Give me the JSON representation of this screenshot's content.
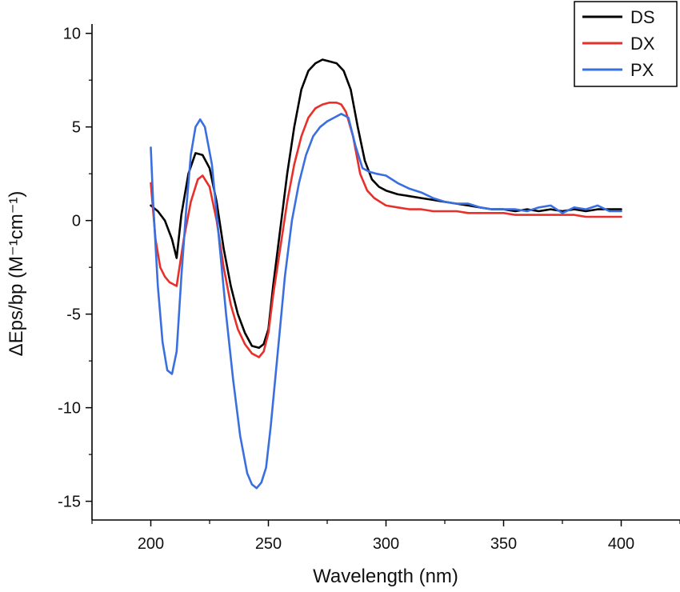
{
  "chart_data": {
    "type": "line",
    "title": "",
    "xlabel": "Wavelength (nm)",
    "ylabel": "ΔEps/bp (M⁻¹cm⁻¹)",
    "xlim": [
      175,
      425
    ],
    "ylim": [
      -16,
      10.5
    ],
    "x_ticks": [
      200,
      250,
      300,
      350,
      400
    ],
    "y_ticks": [
      10,
      5,
      0,
      -5,
      -10,
      -15
    ],
    "x_tick_labels": [
      "200",
      "250",
      "300",
      "350",
      "400"
    ],
    "y_tick_labels": [
      "10",
      "5",
      "0",
      "-5",
      "-10",
      "-15"
    ],
    "legend_position": "top-right",
    "grid": false,
    "series": [
      {
        "name": "DS",
        "color": "#000000",
        "x": [
          200,
          203,
          206,
          209,
          211,
          213,
          216,
          219,
          222,
          225,
          228,
          231,
          234,
          237,
          240,
          243,
          246,
          248,
          250,
          252,
          255,
          258,
          261,
          264,
          267,
          270,
          273,
          276,
          279,
          282,
          285,
          288,
          291,
          294,
          297,
          300,
          305,
          310,
          315,
          320,
          325,
          330,
          335,
          340,
          345,
          350,
          355,
          360,
          365,
          370,
          375,
          380,
          385,
          390,
          395,
          400
        ],
        "y": [
          0.8,
          0.5,
          0.0,
          -1.0,
          -2.0,
          0.3,
          2.5,
          3.6,
          3.5,
          2.8,
          1.0,
          -1.5,
          -3.5,
          -5.0,
          -6.0,
          -6.7,
          -6.8,
          -6.6,
          -5.8,
          -3.5,
          -0.5,
          2.5,
          5.0,
          7.0,
          8.0,
          8.4,
          8.6,
          8.5,
          8.4,
          8.0,
          7.0,
          5.0,
          3.2,
          2.2,
          1.8,
          1.6,
          1.4,
          1.3,
          1.2,
          1.1,
          1.0,
          0.9,
          0.8,
          0.7,
          0.6,
          0.6,
          0.5,
          0.6,
          0.5,
          0.6,
          0.5,
          0.6,
          0.5,
          0.6,
          0.6,
          0.6
        ]
      },
      {
        "name": "DX",
        "color": "#e8302a",
        "x": [
          200,
          202,
          204,
          206,
          208,
          211,
          214,
          217,
          220,
          222,
          225,
          228,
          231,
          234,
          237,
          240,
          243,
          246,
          248,
          250,
          252,
          255,
          258,
          261,
          264,
          267,
          270,
          273,
          276,
          279,
          281,
          283,
          286,
          289,
          292,
          295,
          300,
          305,
          310,
          315,
          320,
          325,
          330,
          335,
          340,
          345,
          350,
          355,
          360,
          365,
          370,
          375,
          380,
          385,
          390,
          395,
          400
        ],
        "y": [
          2.0,
          -1.0,
          -2.5,
          -3.0,
          -3.3,
          -3.5,
          -1.0,
          1.0,
          2.2,
          2.4,
          1.8,
          0.0,
          -2.5,
          -4.5,
          -5.8,
          -6.6,
          -7.1,
          -7.3,
          -7.0,
          -6.0,
          -4.0,
          -1.5,
          1.0,
          3.0,
          4.5,
          5.5,
          6.0,
          6.2,
          6.3,
          6.3,
          6.2,
          5.8,
          4.5,
          2.5,
          1.6,
          1.2,
          0.8,
          0.7,
          0.6,
          0.6,
          0.5,
          0.5,
          0.5,
          0.4,
          0.4,
          0.4,
          0.4,
          0.3,
          0.3,
          0.3,
          0.3,
          0.3,
          0.3,
          0.2,
          0.2,
          0.2,
          0.2
        ]
      },
      {
        "name": "PX",
        "color": "#3a6fe0",
        "x": [
          200,
          201,
          203,
          205,
          207,
          209,
          211,
          213,
          215,
          217,
          219,
          221,
          223,
          226,
          229,
          232,
          235,
          238,
          241,
          243,
          245,
          247,
          249,
          251,
          254,
          257,
          260,
          263,
          266,
          269,
          272,
          275,
          278,
          281,
          284,
          287,
          290,
          293,
          296,
          300,
          305,
          310,
          315,
          320,
          325,
          330,
          335,
          340,
          345,
          350,
          355,
          360,
          365,
          370,
          375,
          380,
          385,
          390,
          395,
          400
        ],
        "y": [
          3.9,
          1.0,
          -3.5,
          -6.5,
          -8.0,
          -8.2,
          -7.0,
          -3.0,
          0.5,
          3.5,
          5.0,
          5.4,
          5.0,
          3.0,
          -1.0,
          -5.0,
          -8.5,
          -11.5,
          -13.5,
          -14.1,
          -14.3,
          -14.0,
          -13.2,
          -11.0,
          -7.0,
          -3.0,
          0.0,
          2.0,
          3.5,
          4.5,
          5.0,
          5.3,
          5.5,
          5.7,
          5.5,
          4.0,
          2.8,
          2.6,
          2.5,
          2.4,
          2.0,
          1.7,
          1.5,
          1.2,
          1.0,
          0.9,
          0.9,
          0.7,
          0.6,
          0.6,
          0.6,
          0.5,
          0.7,
          0.8,
          0.4,
          0.7,
          0.6,
          0.8,
          0.5,
          0.5
        ]
      }
    ]
  }
}
